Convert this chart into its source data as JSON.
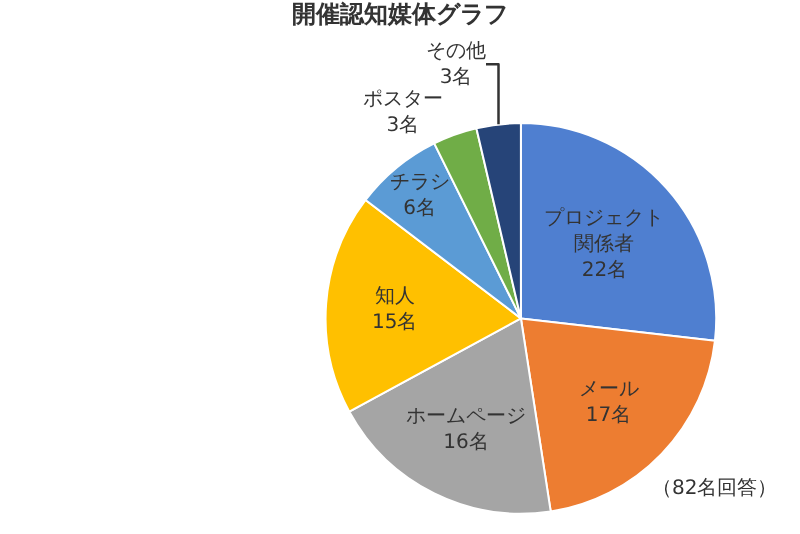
{
  "chart_data": {
    "type": "pie",
    "title": "開催認知媒体グラフ",
    "categories": [
      "プロジェクト関係者",
      "メール",
      "ホームページ",
      "知人",
      "チラシ",
      "ポスター",
      "その他"
    ],
    "values": [
      22,
      17,
      16,
      15,
      6,
      3,
      3
    ],
    "value_labels": [
      "22名",
      "17名",
      "16名",
      "15名",
      "6名",
      "3名",
      "3名"
    ],
    "colors": [
      "#4f7fd0",
      "#ed7d31",
      "#a5a5a5",
      "#ffc000",
      "#5b9bd5",
      "#70ad47",
      "#264478"
    ],
    "annotations": [
      "（82名回答）"
    ],
    "legend": false
  }
}
